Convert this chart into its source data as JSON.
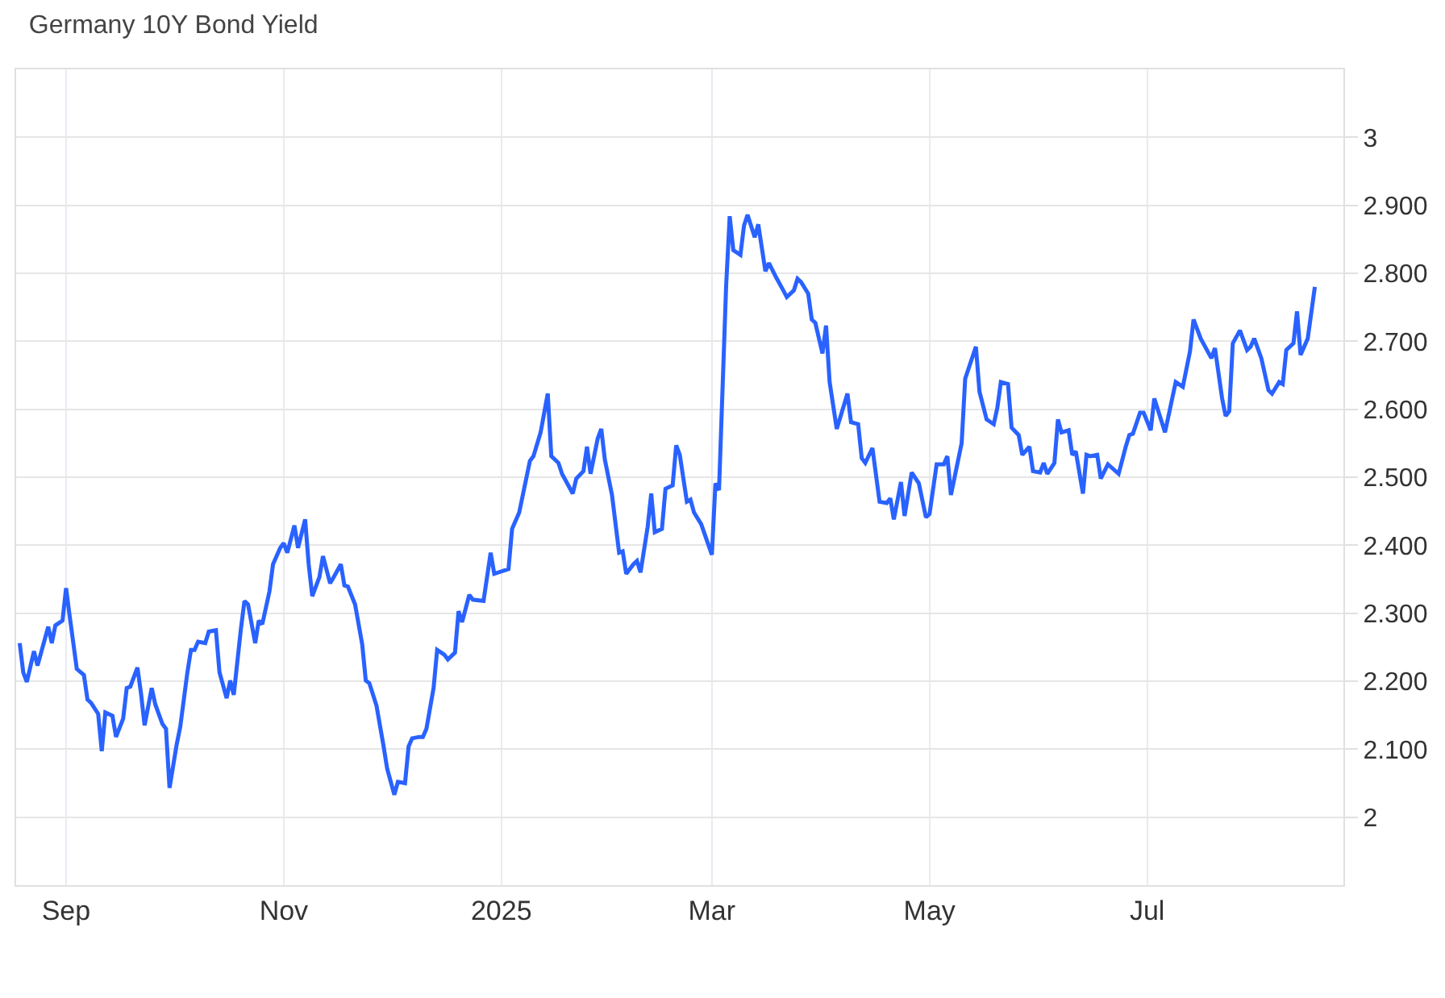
{
  "chart_data": {
    "type": "line",
    "title": "Germany 10Y Bond Yield",
    "color": "#2962ff",
    "grid": true,
    "xlim": [
      "2024-08-18",
      "2025-08-25"
    ],
    "ylim": [
      1.9,
      3.1
    ],
    "xticks": [
      {
        "value": "2024-09-01",
        "label": "Sep"
      },
      {
        "value": "2024-11-01",
        "label": "Nov"
      },
      {
        "value": "2025-01-01",
        "label": "2025"
      },
      {
        "value": "2025-03-01",
        "label": "Mar"
      },
      {
        "value": "2025-05-01",
        "label": "May"
      },
      {
        "value": "2025-07-01",
        "label": "Jul"
      }
    ],
    "yticks": [
      {
        "value": 2,
        "label": "2"
      },
      {
        "value": 2.1,
        "label": "2.100"
      },
      {
        "value": 2.2,
        "label": "2.200"
      },
      {
        "value": 2.3,
        "label": "2.300"
      },
      {
        "value": 2.4,
        "label": "2.400"
      },
      {
        "value": 2.5,
        "label": "2.500"
      },
      {
        "value": 2.6,
        "label": "2.600"
      },
      {
        "value": 2.7,
        "label": "2.700"
      },
      {
        "value": 2.8,
        "label": "2.800"
      },
      {
        "value": 2.9,
        "label": "2.900"
      },
      {
        "value": 3,
        "label": "3"
      }
    ],
    "x": [
      "2024-08-19",
      "2024-08-20",
      "2024-08-21",
      "2024-08-23",
      "2024-08-24",
      "2024-08-27",
      "2024-08-28",
      "2024-08-29",
      "2024-08-31",
      "2024-09-01",
      "2024-09-02",
      "2024-09-04",
      "2024-09-06",
      "2024-09-07",
      "2024-09-08",
      "2024-09-10",
      "2024-09-11",
      "2024-09-12",
      "2024-09-14",
      "2024-09-15",
      "2024-09-17",
      "2024-09-18",
      "2024-09-19",
      "2024-09-21",
      "2024-09-22",
      "2024-09-23",
      "2024-09-25",
      "2024-09-26",
      "2024-09-28",
      "2024-09-29",
      "2024-09-30",
      "2024-10-02",
      "2024-10-03",
      "2024-10-05",
      "2024-10-06",
      "2024-10-07",
      "2024-10-08",
      "2024-10-10",
      "2024-10-11",
      "2024-10-13",
      "2024-10-14",
      "2024-10-16",
      "2024-10-17",
      "2024-10-18",
      "2024-10-20",
      "2024-10-21",
      "2024-10-22",
      "2024-10-24",
      "2024-10-25",
      "2024-10-26",
      "2024-10-28",
      "2024-10-29",
      "2024-10-31",
      "2024-11-01",
      "2024-11-02",
      "2024-11-04",
      "2024-11-05",
      "2024-11-07",
      "2024-11-08",
      "2024-11-09",
      "2024-11-11",
      "2024-11-12",
      "2024-11-14",
      "2024-11-15",
      "2024-11-17",
      "2024-11-18",
      "2024-11-19",
      "2024-11-21",
      "2024-11-23",
      "2024-11-24",
      "2024-11-25",
      "2024-11-27",
      "2024-11-29",
      "2024-11-30",
      "2024-12-02",
      "2024-12-03",
      "2024-12-05",
      "2024-12-06",
      "2024-12-07",
      "2024-12-09",
      "2024-12-10",
      "2024-12-11",
      "2024-12-13",
      "2024-12-14",
      "2024-12-16",
      "2024-12-17",
      "2024-12-19",
      "2024-12-20",
      "2024-12-21",
      "2024-12-23",
      "2024-12-24",
      "2024-12-27",
      "2024-12-29",
      "2024-12-30",
      "2025-01-03",
      "2025-01-04",
      "2025-01-06",
      "2025-01-09",
      "2025-01-10",
      "2025-01-12",
      "2025-01-14",
      "2025-01-15",
      "2025-01-17",
      "2025-01-18",
      "2025-01-21",
      "2025-01-22",
      "2025-01-24",
      "2025-01-25",
      "2025-01-26",
      "2025-01-28",
      "2025-01-29",
      "2025-01-30",
      "2025-02-01",
      "2025-02-03",
      "2025-02-04",
      "2025-02-05",
      "2025-02-07",
      "2025-02-08",
      "2025-02-09",
      "2025-02-11",
      "2025-02-12",
      "2025-02-13",
      "2025-02-15",
      "2025-02-16",
      "2025-02-18",
      "2025-02-19",
      "2025-02-20",
      "2025-02-22",
      "2025-02-23",
      "2025-02-24",
      "2025-02-26",
      "2025-03-01",
      "2025-03-02",
      "2025-03-03",
      "2025-03-05",
      "2025-03-06",
      "2025-03-07",
      "2025-03-09",
      "2025-03-10",
      "2025-03-11",
      "2025-03-13",
      "2025-03-14",
      "2025-03-16",
      "2025-03-17",
      "2025-03-19",
      "2025-03-21",
      "2025-03-22",
      "2025-03-24",
      "2025-03-25",
      "2025-03-26",
      "2025-03-28",
      "2025-03-29",
      "2025-03-30",
      "2025-04-01",
      "2025-04-02",
      "2025-04-03",
      "2025-04-05",
      "2025-04-08",
      "2025-04-09",
      "2025-04-11",
      "2025-04-12",
      "2025-04-13",
      "2025-04-15",
      "2025-04-17",
      "2025-04-19",
      "2025-04-20",
      "2025-04-21",
      "2025-04-23",
      "2025-04-24",
      "2025-04-26",
      "2025-04-28",
      "2025-04-30",
      "2025-05-01",
      "2025-05-03",
      "2025-05-05",
      "2025-05-06",
      "2025-05-07",
      "2025-05-10",
      "2025-05-11",
      "2025-05-14",
      "2025-05-15",
      "2025-05-17",
      "2025-05-19",
      "2025-05-20",
      "2025-05-21",
      "2025-05-23",
      "2025-05-24",
      "2025-05-26",
      "2025-05-27",
      "2025-05-29",
      "2025-05-30",
      "2025-06-01",
      "2025-06-02",
      "2025-06-03",
      "2025-06-05",
      "2025-06-06",
      "2025-06-07",
      "2025-06-09",
      "2025-06-10",
      "2025-06-11",
      "2025-06-13",
      "2025-06-14",
      "2025-06-15",
      "2025-06-17",
      "2025-06-18",
      "2025-06-20",
      "2025-06-23",
      "2025-06-25",
      "2025-06-26",
      "2025-06-27",
      "2025-06-29",
      "2025-06-30",
      "2025-07-02",
      "2025-07-03",
      "2025-07-06",
      "2025-07-09",
      "2025-07-11",
      "2025-07-13",
      "2025-07-14",
      "2025-07-16",
      "2025-07-19",
      "2025-07-20",
      "2025-07-22",
      "2025-07-23",
      "2025-07-24",
      "2025-07-25",
      "2025-07-27",
      "2025-07-29",
      "2025-07-30",
      "2025-07-31",
      "2025-08-02",
      "2025-08-04",
      "2025-08-05",
      "2025-08-07",
      "2025-08-08",
      "2025-08-09",
      "2025-08-11",
      "2025-08-12",
      "2025-08-13",
      "2025-08-15",
      "2025-08-17"
    ],
    "values": [
      2.256,
      2.213,
      2.199,
      2.244,
      2.223,
      2.28,
      2.256,
      2.282,
      2.289,
      2.337,
      2.296,
      2.218,
      2.209,
      2.173,
      2.168,
      2.152,
      2.097,
      2.154,
      2.149,
      2.118,
      2.145,
      2.19,
      2.192,
      2.22,
      2.182,
      2.135,
      2.19,
      2.166,
      2.137,
      2.13,
      2.043,
      2.107,
      2.133,
      2.213,
      2.246,
      2.246,
      2.258,
      2.256,
      2.273,
      2.275,
      2.213,
      2.175,
      2.201,
      2.18,
      2.277,
      2.318,
      2.313,
      2.256,
      2.289,
      2.284,
      2.332,
      2.372,
      2.396,
      2.403,
      2.389,
      2.429,
      2.396,
      2.438,
      2.372,
      2.325,
      2.353,
      2.384,
      2.344,
      2.353,
      2.372,
      2.341,
      2.339,
      2.313,
      2.254,
      2.201,
      2.197,
      2.164,
      2.104,
      2.071,
      2.033,
      2.052,
      2.05,
      2.104,
      2.116,
      2.118,
      2.118,
      2.13,
      2.19,
      2.246,
      2.239,
      2.232,
      2.242,
      2.303,
      2.287,
      2.327,
      2.32,
      2.318,
      2.389,
      2.358,
      2.365,
      2.424,
      2.448,
      2.524,
      2.531,
      2.566,
      2.623,
      2.531,
      2.521,
      2.505,
      2.476,
      2.498,
      2.509,
      2.545,
      2.505,
      2.557,
      2.571,
      2.526,
      2.474,
      2.389,
      2.391,
      2.358,
      2.372,
      2.377,
      2.36,
      2.427,
      2.476,
      2.419,
      2.424,
      2.483,
      2.488,
      2.547,
      2.533,
      2.464,
      2.467,
      2.448,
      2.431,
      2.386,
      2.491,
      2.481,
      2.782,
      2.884,
      2.834,
      2.827,
      2.87,
      2.886,
      2.853,
      2.872,
      2.803,
      2.815,
      2.794,
      2.775,
      2.765,
      2.775,
      2.792,
      2.787,
      2.77,
      2.732,
      2.727,
      2.682,
      2.723,
      2.64,
      2.571,
      2.623,
      2.581,
      2.578,
      2.528,
      2.521,
      2.543,
      2.464,
      2.462,
      2.469,
      2.438,
      2.493,
      2.443,
      2.507,
      2.491,
      2.441,
      2.446,
      2.519,
      2.519,
      2.531,
      2.474,
      2.55,
      2.645,
      2.692,
      2.626,
      2.585,
      2.578,
      2.602,
      2.64,
      2.637,
      2.573,
      2.562,
      2.533,
      2.545,
      2.509,
      2.507,
      2.521,
      2.505,
      2.521,
      2.585,
      2.566,
      2.569,
      2.533,
      2.538,
      2.476,
      2.533,
      2.531,
      2.533,
      2.498,
      2.519,
      2.505,
      2.545,
      2.562,
      2.564,
      2.595,
      2.595,
      2.569,
      2.616,
      2.566,
      2.64,
      2.633,
      2.685,
      2.732,
      2.704,
      2.675,
      2.69,
      2.616,
      2.59,
      2.597,
      2.697,
      2.716,
      2.687,
      2.692,
      2.704,
      2.675,
      2.628,
      2.623,
      2.64,
      2.637,
      2.687,
      2.697,
      2.744,
      2.68,
      2.704,
      2.78
    ]
  }
}
